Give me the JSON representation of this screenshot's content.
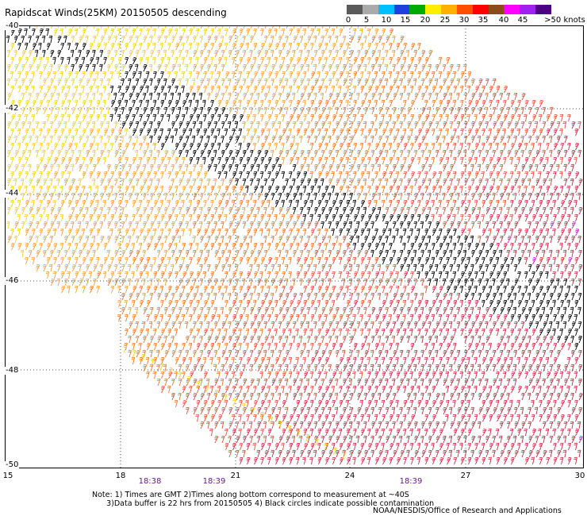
{
  "title": "Rapidscat Winds(25KM) 20150505 descending",
  "scale": {
    "labels": [
      "0",
      "5",
      "10",
      "15",
      "20",
      "25",
      "30",
      "35",
      "40",
      "45",
      ">50 knots"
    ],
    "colors": [
      "#5a5a5a",
      "#aaaaaa",
      "#00bfff",
      "#1f3fe0",
      "#00aa00",
      "#ffee00",
      "#ffb000",
      "#ff5000",
      "#ff0000",
      "#8b4b1a",
      "#ff00ff",
      "#a020f0",
      "#4b0082"
    ]
  },
  "axes": {
    "lat_labels": [
      "-40",
      "-42",
      "-44",
      "-46",
      "-48",
      "-50"
    ],
    "lon_labels": [
      "15",
      "18",
      "21",
      "24",
      "27",
      "30"
    ]
  },
  "times": [
    "18:38",
    "18:39",
    "18:39"
  ],
  "notes": {
    "line1": "Note: 1) Times are GMT 2)Times along bottom correspond to measurement at ~40S",
    "line2": "      3)Data buffer is 22 hrs from 20150505 4) Black circles indicate possible contamination"
  },
  "credit": "NOAA/NESDIS/Office of Research and Applications",
  "barb_colors": {
    "yellow": "#f3d21c",
    "orange": "#f2a23a",
    "deep_orange": "#ea7a2c",
    "red_orange": "#e3503c",
    "crimson": "#cc2a44",
    "magenta": "#c81ecf",
    "black": "#000000"
  }
}
